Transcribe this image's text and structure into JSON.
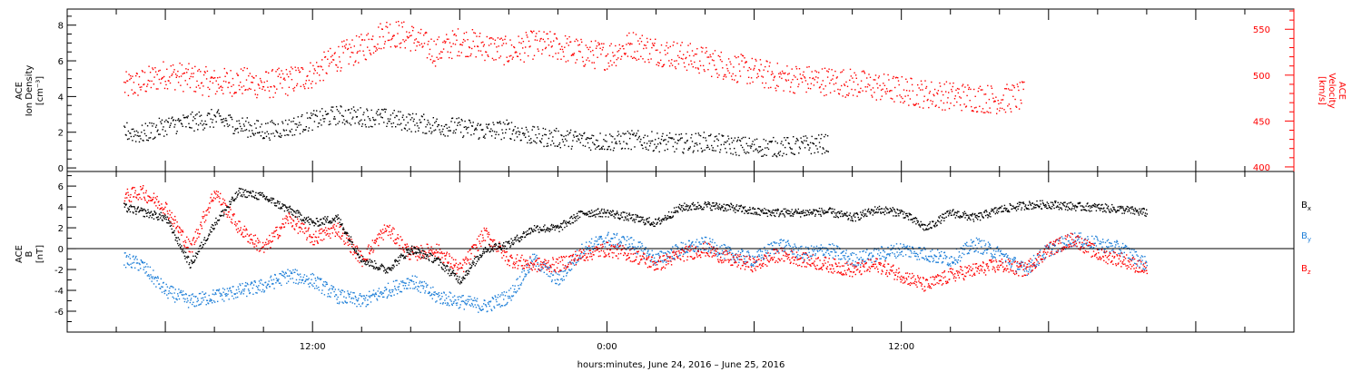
{
  "chart_data": [
    {
      "type": "scatter",
      "panel": "top",
      "ylabel_left": [
        "ACE",
        "Ion Density",
        "[cm⁻³]"
      ],
      "ylabel_right": [
        "ACE",
        "Velocity",
        "[km/s]"
      ],
      "y_left_ticks": [
        "0",
        "2",
        "4",
        "6",
        "8"
      ],
      "y_left_lim": [
        -0.2,
        8.9
      ],
      "y_right_ticks": [
        "400",
        "450",
        "500",
        "550"
      ],
      "y_right_lim": [
        395,
        572
      ],
      "series": [
        {
          "name": "Ion Density",
          "color": "#000000",
          "axis": "left",
          "keypoints": [
            [
              4.3,
              2.1
            ],
            [
              5,
              1.9
            ],
            [
              6,
              2.4
            ],
            [
              7,
              2.6
            ],
            [
              8,
              2.8
            ],
            [
              9,
              2.4
            ],
            [
              10,
              2.1
            ],
            [
              11,
              2.3
            ],
            [
              12,
              2.7
            ],
            [
              13,
              3.0
            ],
            [
              14,
              2.9
            ],
            [
              15,
              2.8
            ],
            [
              16,
              2.6
            ],
            [
              17,
              2.4
            ],
            [
              18,
              2.3
            ],
            [
              19,
              2.1
            ],
            [
              20,
              2.2
            ],
            [
              21,
              1.8
            ],
            [
              22,
              1.7
            ],
            [
              23,
              1.6
            ],
            [
              24,
              1.5
            ],
            [
              25,
              1.6
            ],
            [
              26,
              1.5
            ],
            [
              27,
              1.4
            ],
            [
              28,
              1.5
            ],
            [
              29,
              1.3
            ],
            [
              30,
              1.2
            ],
            [
              31,
              1.2
            ],
            [
              32,
              1.3
            ],
            [
              33,
              1.4
            ]
          ]
        },
        {
          "name": "Velocity",
          "color": "#ff0000",
          "axis": "right",
          "keypoints": [
            [
              4.3,
              488
            ],
            [
              5,
              492
            ],
            [
              6,
              502
            ],
            [
              7,
              497
            ],
            [
              8,
              492
            ],
            [
              9,
              494
            ],
            [
              10,
              490
            ],
            [
              11,
              494
            ],
            [
              12,
              502
            ],
            [
              13,
              520
            ],
            [
              14,
              530
            ],
            [
              15,
              548
            ],
            [
              16,
              542
            ],
            [
              17,
              526
            ],
            [
              18,
              538
            ],
            [
              19,
              532
            ],
            [
              20,
              526
            ],
            [
              21,
              534
            ],
            [
              22,
              532
            ],
            [
              23,
              524
            ],
            [
              24,
              522
            ],
            [
              25,
              534
            ],
            [
              26,
              527
            ],
            [
              27,
              522
            ],
            [
              28,
              516
            ],
            [
              29,
              510
            ],
            [
              30,
              504
            ],
            [
              31,
              498
            ],
            [
              32,
              496
            ],
            [
              33,
              494
            ],
            [
              34,
              492
            ],
            [
              35,
              488
            ],
            [
              36,
              484
            ],
            [
              37,
              480
            ],
            [
              38,
              478
            ],
            [
              39,
              476
            ],
            [
              40,
              474
            ],
            [
              41,
              478
            ]
          ]
        }
      ]
    },
    {
      "type": "scatter",
      "panel": "bottom",
      "ylabel": [
        "ACE",
        "B",
        "[nT]"
      ],
      "y_ticks": [
        "-6",
        "-4",
        "-2",
        "0",
        "2",
        "4",
        "6"
      ],
      "ylim": [
        -8,
        7.4
      ],
      "zero_line": true,
      "legend_labels": [
        "B",
        "B",
        "B"
      ],
      "legend_subscripts": [
        "x",
        "y",
        "z"
      ],
      "series": [
        {
          "name": "Bx",
          "color": "#000000",
          "keypoints": [
            [
              4.3,
              4.0
            ],
            [
              6,
              3.0
            ],
            [
              7,
              -1.5
            ],
            [
              8,
              2.5
            ],
            [
              9,
              5.5
            ],
            [
              10,
              5.0
            ],
            [
              11,
              3.8
            ],
            [
              12,
              2.5
            ],
            [
              13,
              3.0
            ],
            [
              14,
              -1.0
            ],
            [
              15,
              -2.0
            ],
            [
              16,
              0.0
            ],
            [
              17,
              -1.0
            ],
            [
              18,
              -3.0
            ],
            [
              19,
              0.0
            ],
            [
              20,
              0.5
            ],
            [
              21,
              2.0
            ],
            [
              22,
              2.0
            ],
            [
              23,
              3.5
            ],
            [
              24,
              3.5
            ],
            [
              25,
              3.0
            ],
            [
              26,
              2.5
            ],
            [
              27,
              4.0
            ],
            [
              28,
              4.2
            ],
            [
              29,
              4.0
            ],
            [
              30,
              3.6
            ],
            [
              31,
              3.5
            ],
            [
              32,
              3.5
            ],
            [
              33,
              3.6
            ],
            [
              34,
              3.0
            ],
            [
              35,
              3.8
            ],
            [
              36,
              3.5
            ],
            [
              37,
              2.0
            ],
            [
              38,
              3.5
            ],
            [
              39,
              3.0
            ],
            [
              40,
              3.8
            ],
            [
              41,
              4.2
            ],
            [
              42,
              4.3
            ],
            [
              43,
              4.1
            ],
            [
              44,
              4.0
            ],
            [
              45,
              3.8
            ],
            [
              46,
              3.5
            ]
          ]
        },
        {
          "name": "By",
          "color": "#1e7fd8",
          "keypoints": [
            [
              4.3,
              -1.0
            ],
            [
              5,
              -1.5
            ],
            [
              6,
              -4.0
            ],
            [
              7,
              -5.0
            ],
            [
              8,
              -4.5
            ],
            [
              9,
              -4.0
            ],
            [
              10,
              -3.5
            ],
            [
              11,
              -2.5
            ],
            [
              12,
              -3.0
            ],
            [
              13,
              -4.5
            ],
            [
              14,
              -5.0
            ],
            [
              15,
              -4.0
            ],
            [
              16,
              -3.0
            ],
            [
              17,
              -4.5
            ],
            [
              18,
              -5.0
            ],
            [
              19,
              -5.5
            ],
            [
              20,
              -4.5
            ],
            [
              21,
              -1.0
            ],
            [
              22,
              -3.0
            ],
            [
              23,
              0.0
            ],
            [
              24,
              1.0
            ],
            [
              25,
              0.5
            ],
            [
              26,
              -1.0
            ],
            [
              27,
              0.0
            ],
            [
              28,
              0.5
            ],
            [
              29,
              -0.5
            ],
            [
              30,
              -1.0
            ],
            [
              31,
              0.5
            ],
            [
              32,
              -0.5
            ],
            [
              33,
              0.0
            ],
            [
              34,
              -1.0
            ],
            [
              35,
              -0.5
            ],
            [
              36,
              0.0
            ],
            [
              37,
              -0.5
            ],
            [
              38,
              -1.0
            ],
            [
              39,
              0.5
            ],
            [
              40,
              -0.5
            ],
            [
              41,
              -2.0
            ],
            [
              42,
              0.0
            ],
            [
              43,
              1.0
            ],
            [
              44,
              0.5
            ],
            [
              45,
              0.0
            ],
            [
              46,
              -1.5
            ]
          ]
        },
        {
          "name": "Bz",
          "color": "#ff0000",
          "keypoints": [
            [
              4.3,
              5.0
            ],
            [
              5,
              5.5
            ],
            [
              6,
              4.0
            ],
            [
              7,
              0.0
            ],
            [
              8,
              5.5
            ],
            [
              9,
              2.0
            ],
            [
              10,
              0.0
            ],
            [
              11,
              3.0
            ],
            [
              12,
              1.0
            ],
            [
              13,
              2.0
            ],
            [
              14,
              -1.0
            ],
            [
              15,
              2.0
            ],
            [
              16,
              -0.5
            ],
            [
              17,
              0.0
            ],
            [
              18,
              -2.0
            ],
            [
              19,
              1.5
            ],
            [
              20,
              -1.0
            ],
            [
              21,
              -1.5
            ],
            [
              22,
              -1.5
            ],
            [
              23,
              -0.5
            ],
            [
              24,
              0.0
            ],
            [
              25,
              -0.5
            ],
            [
              26,
              -1.5
            ],
            [
              27,
              -0.5
            ],
            [
              28,
              0.0
            ],
            [
              29,
              -1.0
            ],
            [
              30,
              -1.5
            ],
            [
              31,
              -0.5
            ],
            [
              32,
              -1.0
            ],
            [
              33,
              -1.5
            ],
            [
              34,
              -2.0
            ],
            [
              35,
              -1.5
            ],
            [
              36,
              -2.5
            ],
            [
              37,
              -3.5
            ],
            [
              38,
              -2.5
            ],
            [
              39,
              -2.0
            ],
            [
              40,
              -1.5
            ],
            [
              41,
              -2.0
            ],
            [
              42,
              0.0
            ],
            [
              43,
              1.0
            ],
            [
              44,
              -0.5
            ],
            [
              45,
              -1.0
            ],
            [
              46,
              -2.0
            ]
          ]
        }
      ]
    }
  ],
  "x_axis": {
    "label": "hours:minutes, June 24, 2016 – June 25, 2016",
    "unit": "hours since 00:00 June 24",
    "lim": [
      2,
      52
    ],
    "tick_labels": [
      {
        "h": 12,
        "text": "12:00"
      },
      {
        "h": 24,
        "text": "0:00"
      },
      {
        "h": 36,
        "text": "12:00"
      }
    ]
  },
  "colors": {
    "black": "#000000",
    "red": "#ff0000",
    "blue": "#1e7fd8",
    "axis": "#000000",
    "right_axis": "#ff0000"
  }
}
